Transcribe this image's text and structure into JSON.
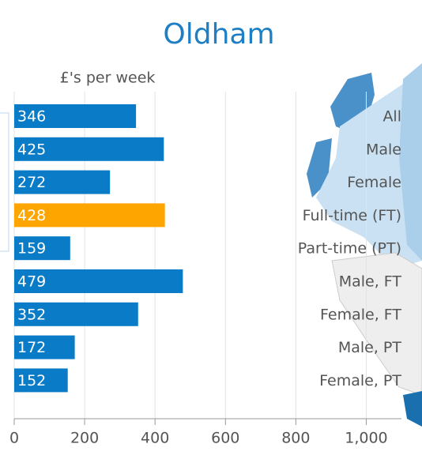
{
  "chart_data": {
    "type": "bar",
    "orientation": "horizontal",
    "title": "Oldham",
    "x_label": "£'s per week",
    "categories": [
      "All",
      "Male",
      "Female",
      "Full-time (FT)",
      "Part-time (PT)",
      "Male, FT",
      "Female, FT",
      "Male, PT",
      "Female, PT"
    ],
    "values": [
      346,
      425,
      272,
      428,
      159,
      479,
      352,
      172,
      152
    ],
    "colors": [
      "#0a7cc7",
      "#0a7cc7",
      "#0a7cc7",
      "#ffa500",
      "#0a7cc7",
      "#0a7cc7",
      "#0a7cc7",
      "#0a7cc7",
      "#0a7cc7"
    ],
    "xlim": [
      0,
      1100
    ],
    "xticks": [
      0,
      200,
      400,
      600,
      800,
      {
        "value": 1000,
        "label": "1,000"
      }
    ],
    "grid": true
  }
}
